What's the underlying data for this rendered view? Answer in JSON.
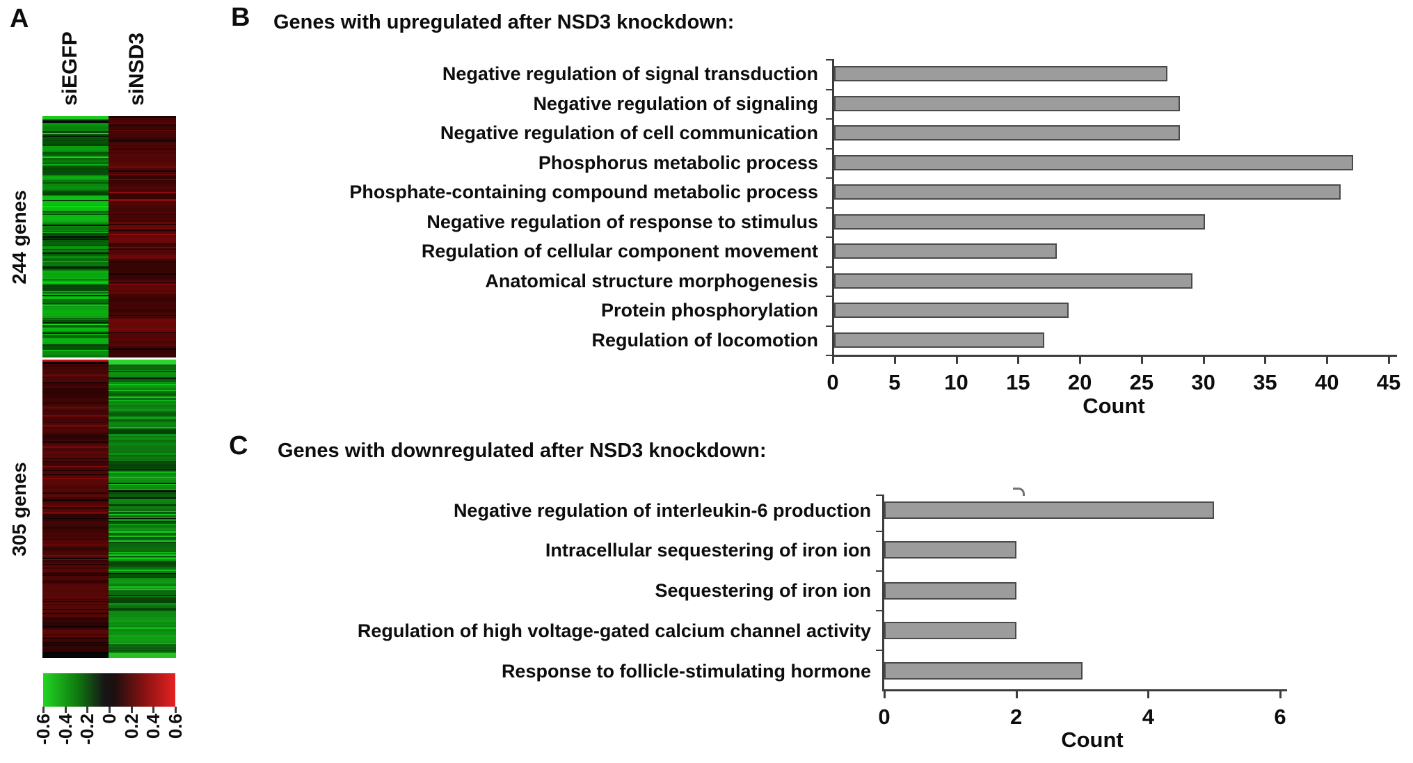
{
  "colors": {
    "background": "#ffffff",
    "text": "#0d0d0d",
    "axis": "#3c3c3c",
    "bar_fill": "#9c9c9c",
    "bar_border": "#4a4a4a",
    "colorbar_green": "#22d422",
    "colorbar_black": "#161616",
    "colorbar_red": "#e62222"
  },
  "chart_data": [
    {
      "type": "heatmap",
      "panel": "A",
      "columns": [
        "siEGFP",
        "siNSD3"
      ],
      "row_groups": [
        {
          "label": "244 genes",
          "n_rows": 244,
          "siEGFP": "green (low)",
          "siNSD3": "red (high)"
        },
        {
          "label": "305 genes",
          "n_rows": 305,
          "siEGFP": "red (high)",
          "siNSD3": "green (low)"
        }
      ],
      "colorbar": {
        "min": -0.6,
        "max": 0.6,
        "tick_labels": [
          "-0.6",
          "-0.4",
          "-0.2",
          "0",
          "0.2",
          "0.4",
          "0.6"
        ],
        "gradient": [
          "green",
          "black",
          "red"
        ]
      }
    },
    {
      "type": "bar",
      "panel": "B",
      "title": "Genes with upregulated after NSD3 knockdown:",
      "orientation": "horizontal",
      "categories": [
        "Negative regulation of signal transduction",
        "Negative regulation of signaling",
        "Negative regulation of cell communication",
        "Phosphorus metabolic process",
        "Phosphate-containing compound metabolic process",
        "Negative regulation of response to stimulus",
        "Regulation of cellular component movement",
        "Anatomical structure morphogenesis",
        "Protein phosphorylation",
        "Regulation of locomotion"
      ],
      "values": [
        27,
        28,
        28,
        42,
        41,
        30,
        18,
        29,
        19,
        17
      ],
      "xlabel": "Count",
      "xlim": [
        0,
        45
      ],
      "xticks": [
        0,
        5,
        10,
        15,
        20,
        25,
        30,
        35,
        40,
        45
      ],
      "grid": false,
      "legend": false
    },
    {
      "type": "bar",
      "panel": "C",
      "title": "Genes with downregulated after NSD3 knockdown:",
      "orientation": "horizontal",
      "categories": [
        "Negative regulation of interleukin-6 production",
        "Intracellular sequestering of iron ion",
        "Sequestering of iron ion",
        "Regulation of high voltage-gated calcium channel activity",
        "Response to follicle-stimulating hormone"
      ],
      "values": [
        5,
        2,
        2,
        2,
        3
      ],
      "xlabel": "Count",
      "xlim": [
        0,
        6
      ],
      "xticks": [
        0,
        2,
        4,
        6
      ],
      "grid": false,
      "legend": false
    }
  ]
}
